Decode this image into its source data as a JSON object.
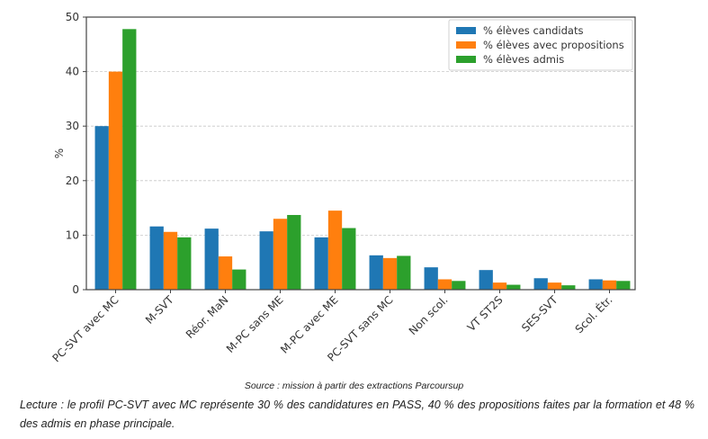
{
  "chart_data": {
    "type": "bar",
    "title": "",
    "xlabel": "",
    "ylabel": "%",
    "ylim": [
      0,
      50
    ],
    "yticks": [
      0,
      10,
      20,
      30,
      40,
      50
    ],
    "grid": "y-dashed",
    "legend_position": "top-right",
    "categories": [
      "PC-SVT avec MC",
      "M-SVT",
      "Réor. MaN",
      "M-PC sans ME",
      "M-PC avec ME",
      "PC-SVT sans MC",
      "Non scol.",
      "VT ST2S",
      "SES-SVT",
      "Scol. Étr."
    ],
    "series": [
      {
        "name": "% élèves candidats",
        "color": "#1f77b4",
        "values": [
          30.0,
          11.6,
          11.2,
          10.7,
          9.6,
          6.3,
          4.1,
          3.6,
          2.1,
          1.9
        ]
      },
      {
        "name": "% élèves avec propositions",
        "color": "#ff7f0e",
        "values": [
          40.0,
          10.6,
          6.1,
          13.0,
          14.5,
          5.8,
          1.9,
          1.3,
          1.3,
          1.7
        ]
      },
      {
        "name": "% élèves admis",
        "color": "#2ca02c",
        "values": [
          47.8,
          9.6,
          3.7,
          13.7,
          11.3,
          6.2,
          1.6,
          0.9,
          0.8,
          1.6
        ]
      }
    ]
  },
  "caption": {
    "source": "Source : mission à partir des extractions Parcoursup",
    "lecture": "Lecture : le profil PC-SVT avec MC représente 30 % des candidatures en PASS, 40 % des propositions faites par la formation et 48 % des admis en phase principale."
  }
}
